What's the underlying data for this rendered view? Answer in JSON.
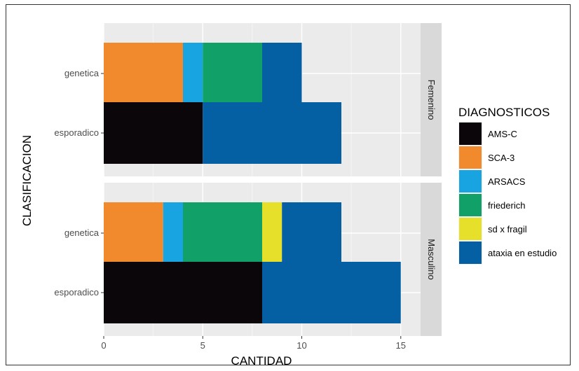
{
  "chart_data": {
    "type": "bar",
    "orientation": "horizontal",
    "stacked": true,
    "xlabel": "CANTIDAD",
    "ylabel": "CLASIFICACION",
    "xlim": [
      0,
      16
    ],
    "xticks": [
      0,
      5,
      10,
      15
    ],
    "grid": true,
    "legend_position": "right",
    "legend": {
      "title": "DIAGNOSTICOS",
      "entries": [
        {
          "label": "AMS-C",
          "color": "#0a0609"
        },
        {
          "label": "SCA-3",
          "color": "#f08a2c"
        },
        {
          "label": "ARSACS",
          "color": "#18a4e0"
        },
        {
          "label": "friederich",
          "color": "#11a168"
        },
        {
          "label": "sd x fragil",
          "color": "#e6e02a"
        },
        {
          "label": "ataxia en estudio",
          "color": "#045fa3"
        }
      ]
    },
    "categories": [
      "genetica",
      "esporadico"
    ],
    "panels": [
      {
        "facet": "Femenino",
        "rows": [
          {
            "category": "genetica",
            "segments": [
              {
                "series": "SCA-3",
                "value": 4
              },
              {
                "series": "ARSACS",
                "value": 1
              },
              {
                "series": "friederich",
                "value": 3
              },
              {
                "series": "ataxia en estudio",
                "value": 2
              }
            ]
          },
          {
            "category": "esporadico",
            "segments": [
              {
                "series": "AMS-C",
                "value": 5
              },
              {
                "series": "ataxia en estudio",
                "value": 7
              }
            ]
          }
        ]
      },
      {
        "facet": "Masculino",
        "rows": [
          {
            "category": "genetica",
            "segments": [
              {
                "series": "SCA-3",
                "value": 3
              },
              {
                "series": "ARSACS",
                "value": 1
              },
              {
                "series": "friederich",
                "value": 4
              },
              {
                "series": "sd x fragil",
                "value": 1
              },
              {
                "series": "ataxia en estudio",
                "value": 3
              }
            ]
          },
          {
            "category": "esporadico",
            "segments": [
              {
                "series": "AMS-C",
                "value": 8
              },
              {
                "series": "ataxia en estudio",
                "value": 7
              }
            ]
          }
        ]
      }
    ]
  }
}
